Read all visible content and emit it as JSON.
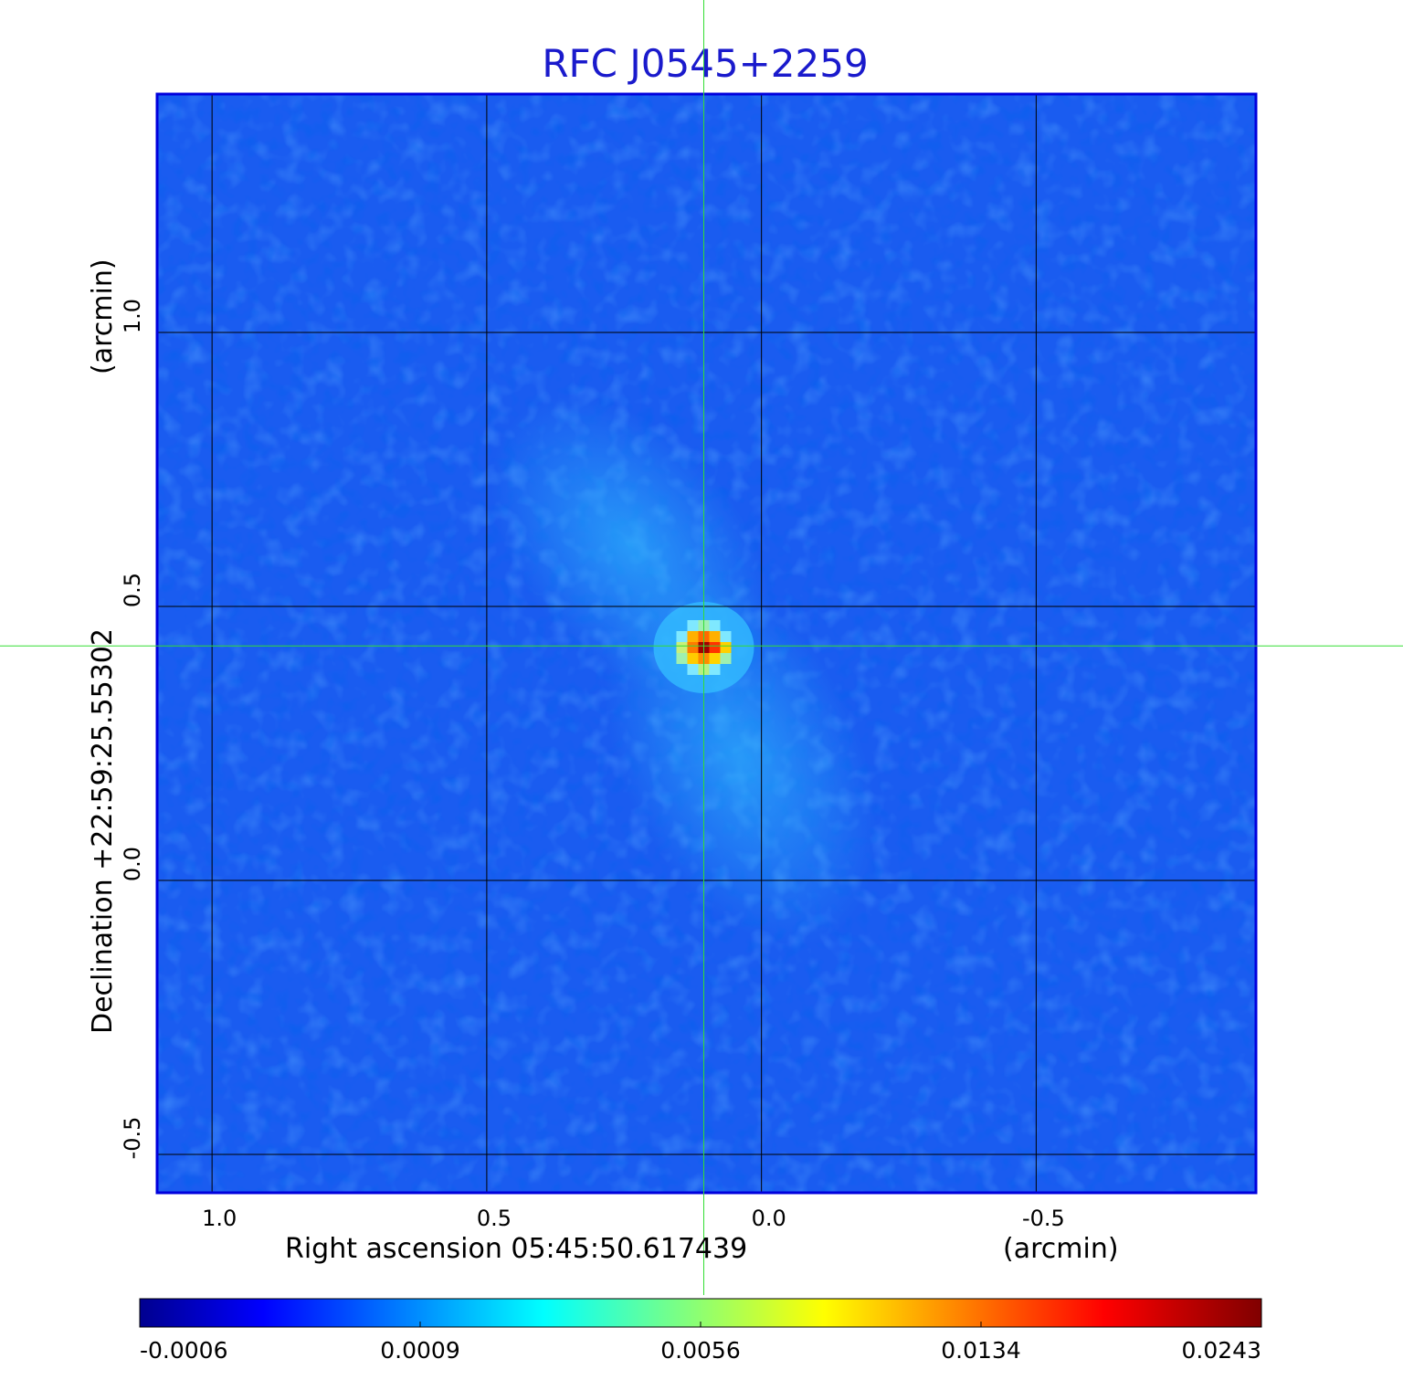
{
  "chart_data": {
    "type": "heatmap",
    "title": "RFC J0545+2259",
    "xlabel": "Right ascension  05:45:50.617439",
    "xunit": "(arcmin)",
    "ylabel": "Declination  +22:59:25.55302",
    "yunit": "(arcmin)",
    "x_ticks": [
      1.0,
      0.5,
      0.0,
      -0.5
    ],
    "x_tick_labels": [
      "1.0",
      "0.5",
      "0.0",
      "-0.5"
    ],
    "y_ticks": [
      1.0,
      0.5,
      0.0,
      -0.5
    ],
    "y_tick_labels": [
      "1.0",
      "0.5",
      "0.0",
      "-0.5"
    ],
    "xlim": [
      1.1,
      -0.9
    ],
    "ylim": [
      -0.57,
      1.435
    ],
    "grid": true,
    "colormap": "jet",
    "colorbar_ticks": [
      -0.0006,
      0.0009,
      0.0056,
      0.0134,
      0.0243
    ],
    "colorbar_tick_labels": [
      "-0.0006",
      "0.0009",
      "0.0056",
      "0.0134",
      "0.0243"
    ],
    "colorbar_range": [
      -0.0006,
      0.0243
    ],
    "peak": {
      "x": 0.105,
      "y": 0.425,
      "value": 0.0243
    },
    "crosshair": {
      "x": 0.105,
      "y": 0.428
    },
    "colors": {
      "title": "#1a1acc",
      "crosshair": "#33dd33",
      "grid": "#000000",
      "frame": "#0000dd"
    }
  }
}
